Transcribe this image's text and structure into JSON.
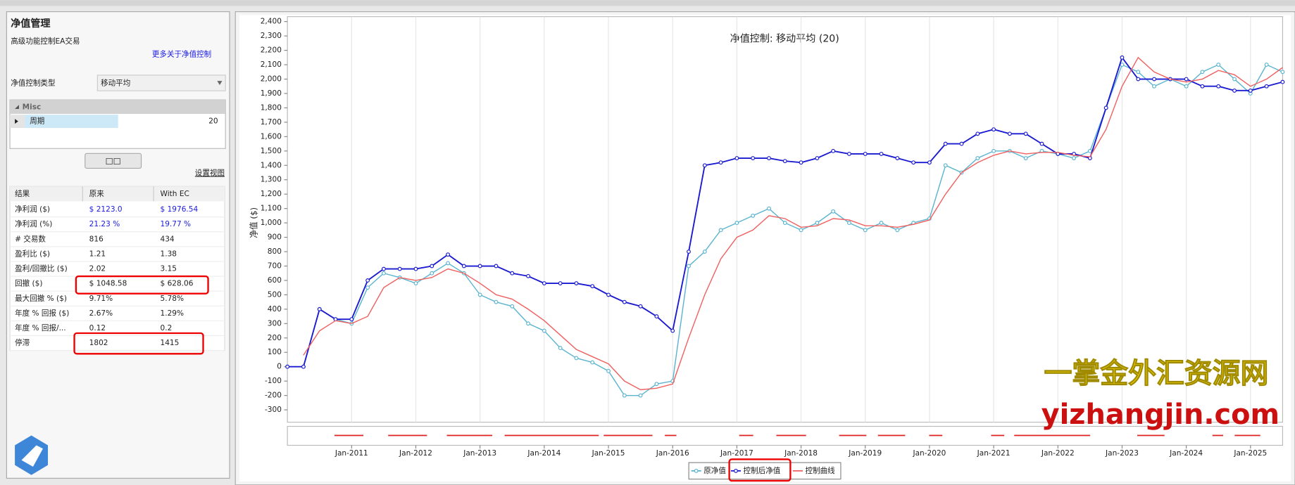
{
  "panel": {
    "title": "净值管理",
    "subtitle": "高级功能控制EA交易",
    "link": "更多关于净值控制",
    "type_label": "净值控制类型",
    "type_value": "移动平均",
    "group": "Misc",
    "property": "周期",
    "property_value": "20",
    "button": "□□",
    "view": "设置视图",
    "table": {
      "header": [
        "结果",
        "原来",
        "With EC"
      ],
      "rows": [
        [
          "净利润 ($)",
          "$ 2123.0",
          "$ 1976.54"
        ],
        [
          "净利润 (%)",
          "21.23 %",
          "19.77 %"
        ],
        [
          "# 交易数",
          "816",
          "434"
        ],
        [
          "盈利比 ($)",
          "1.21",
          "1.38"
        ],
        [
          "盈利/回撤比 ($)",
          "2.02",
          "3.15"
        ],
        [
          "回撤 ($)",
          "$ 1048.58",
          "$ 628.06"
        ],
        [
          "最大回撤 % ($)",
          "9.71%",
          "5.78%"
        ],
        [
          "年度 % 回报 ($)",
          "2.67%",
          "1.29%"
        ],
        [
          "年度 % 回报/...",
          "0.12",
          "0.2"
        ],
        [
          "停滞",
          "1802",
          "1415"
        ]
      ]
    }
  },
  "watermark": {
    "line1": "一掌金外汇资源网",
    "line2": "yizhangjin.com"
  },
  "chart_data": {
    "type": "line",
    "title": "净值控制: 移动平均 (20)",
    "y_label": "净值 ($)",
    "xgrid": true,
    "x": [
      "Jan-2010",
      "Apr-2010",
      "Jul-2010",
      "Oct-2010",
      "Jan-2011",
      "Apr-2011",
      "Jul-2011",
      "Oct-2011",
      "Jan-2012",
      "Apr-2012",
      "Jul-2012",
      "Oct-2012",
      "Jan-2013",
      "Apr-2013",
      "Jul-2013",
      "Oct-2013",
      "Jan-2014",
      "Apr-2014",
      "Jul-2014",
      "Oct-2014",
      "Jan-2015",
      "Apr-2015",
      "Jul-2015",
      "Oct-2015",
      "Jan-2016",
      "Apr-2016",
      "Jul-2016",
      "Oct-2016",
      "Jan-2017",
      "Apr-2017",
      "Jul-2017",
      "Oct-2017",
      "Jan-2018",
      "Apr-2018",
      "Jul-2018",
      "Oct-2018",
      "Jan-2019",
      "Apr-2019",
      "Jul-2019",
      "Oct-2019",
      "Jan-2020",
      "Apr-2020",
      "Jul-2020",
      "Oct-2020",
      "Jan-2021",
      "Apr-2021",
      "Jul-2021",
      "Oct-2021",
      "Jan-2022",
      "Apr-2022",
      "Jul-2022",
      "Oct-2022",
      "Jan-2023",
      "Apr-2023",
      "Jul-2023",
      "Oct-2023",
      "Jan-2024",
      "Apr-2024",
      "Jul-2024",
      "Oct-2024",
      "Jan-2025",
      "Apr-2025",
      "Jul-2025"
    ],
    "xlim": [
      "Jan-2010",
      "Jul-2025"
    ],
    "xticks": [
      "Jan-2011",
      "Jan-2012",
      "Jan-2013",
      "Jan-2014",
      "Jan-2015",
      "Jan-2016",
      "Jan-2017",
      "Jan-2018",
      "Jan-2019",
      "Jan-2020",
      "Jan-2021",
      "Jan-2022",
      "Jan-2023",
      "Jan-2024",
      "Jan-2025"
    ],
    "ylim": [
      -300,
      2400
    ],
    "yticks": [
      -300,
      -200,
      -100,
      0,
      100,
      200,
      300,
      400,
      500,
      600,
      700,
      800,
      900,
      {
        "value": 1000,
        "label": "1,000"
      },
      {
        "value": 1100,
        "label": "1,100"
      },
      {
        "value": 1200,
        "label": "1,200"
      },
      {
        "value": 1300,
        "label": "1,300"
      },
      {
        "value": 1400,
        "label": "1,400"
      },
      {
        "value": 1500,
        "label": "1,500"
      },
      {
        "value": 1600,
        "label": "1,600"
      },
      {
        "value": 1700,
        "label": "1,700"
      },
      {
        "value": 1800,
        "label": "1,800"
      },
      {
        "value": 1900,
        "label": "1,900"
      },
      {
        "value": 2000,
        "label": "2,000"
      },
      {
        "value": 2100,
        "label": "2,100"
      },
      {
        "value": 2200,
        "label": "2,200"
      },
      {
        "value": 2300,
        "label": "2,300"
      },
      {
        "value": 2400,
        "label": "2,400"
      }
    ],
    "series": [
      {
        "name": "原净值",
        "color": "#5ab4d0",
        "values": [
          0,
          0,
          400,
          330,
          300,
          550,
          650,
          620,
          580,
          650,
          720,
          650,
          500,
          450,
          420,
          300,
          250,
          130,
          60,
          30,
          -30,
          -200,
          -200,
          -120,
          -100,
          700,
          800,
          950,
          1000,
          1050,
          1100,
          1000,
          950,
          1000,
          1080,
          1000,
          950,
          1000,
          950,
          1000,
          1030,
          1400,
          1350,
          1450,
          1500,
          1500,
          1450,
          1500,
          1480,
          1450,
          1500,
          1800,
          2100,
          2050,
          1950,
          2000,
          1950,
          2050,
          2100,
          2000,
          1900,
          2100,
          2050
        ]
      },
      {
        "name": "控制后净值",
        "color": "#1a1ad0",
        "values": [
          0,
          0,
          400,
          330,
          330,
          600,
          680,
          680,
          680,
          700,
          780,
          700,
          700,
          700,
          650,
          630,
          580,
          580,
          580,
          560,
          500,
          450,
          420,
          350,
          250,
          800,
          1400,
          1420,
          1450,
          1450,
          1450,
          1430,
          1420,
          1450,
          1500,
          1480,
          1480,
          1480,
          1450,
          1420,
          1420,
          1550,
          1550,
          1620,
          1650,
          1620,
          1620,
          1550,
          1480,
          1480,
          1450,
          1800,
          2150,
          2000,
          2000,
          2000,
          2000,
          1950,
          1950,
          1920,
          1920,
          1950,
          1980
        ]
      },
      {
        "name": "控制曲线",
        "color": "#f06060",
        "values": [
          null,
          80,
          250,
          320,
          300,
          350,
          550,
          620,
          600,
          620,
          680,
          650,
          580,
          500,
          470,
          400,
          320,
          220,
          120,
          70,
          20,
          -100,
          -160,
          -150,
          -120,
          200,
          500,
          750,
          900,
          950,
          1050,
          1030,
          970,
          980,
          1030,
          1020,
          980,
          980,
          970,
          990,
          1020,
          1200,
          1350,
          1420,
          1470,
          1500,
          1480,
          1490,
          1490,
          1470,
          1460,
          1650,
          1950,
          2150,
          2050,
          2000,
          1980,
          2000,
          2060,
          2030,
          1950,
          2000,
          2080
        ]
      }
    ]
  }
}
